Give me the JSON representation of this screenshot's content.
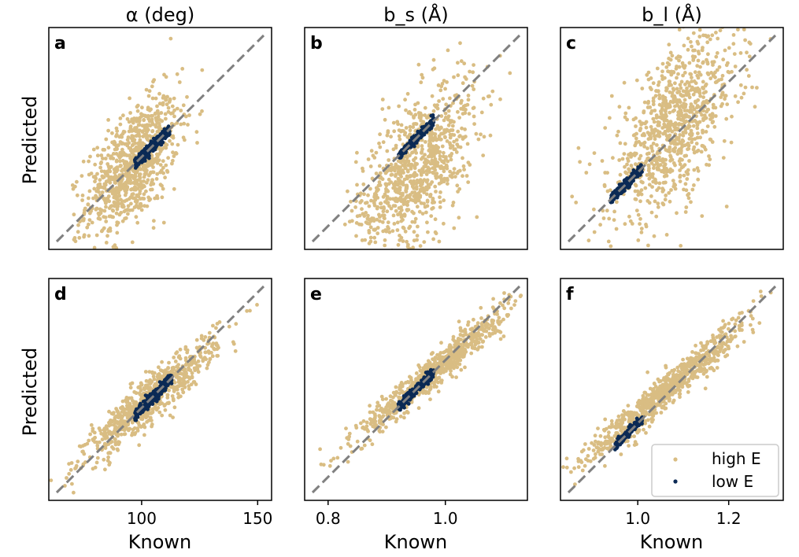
{
  "colors": {
    "high": "#d9bd83",
    "low": "#0b2a55",
    "identity": "#808080",
    "frame": "#000000"
  },
  "ylabel": "Predicted",
  "xlabel": "Known",
  "legend": {
    "items": [
      "high E",
      "low E"
    ],
    "position": "bottom-right of panel f"
  },
  "chart_data": [
    {
      "type": "scatter",
      "panel": "a",
      "title": "α (deg)",
      "xlim": [
        60,
        156
      ],
      "ylim": [
        60,
        156
      ],
      "xticks": [
        100,
        150
      ],
      "show_xticks": false,
      "high": {
        "center": [
          96,
          96
        ],
        "spread": [
          10,
          12
        ],
        "count": 900
      },
      "low": {
        "x_range": [
          97,
          112
        ],
        "slope": 1.0,
        "width": 1.2,
        "count": 320
      }
    },
    {
      "type": "scatter",
      "panel": "b",
      "title": "b_s (Å)",
      "xlim": [
        0.76,
        1.14
      ],
      "ylim": [
        0.76,
        1.14
      ],
      "xticks": [
        0.8,
        1.0
      ],
      "show_xticks": false,
      "high": {
        "center": [
          0.95,
          0.9
        ],
        "spread": [
          0.05,
          0.06
        ],
        "count": 900
      },
      "low": {
        "x_range": [
          0.92,
          0.98
        ],
        "slope": 1.0,
        "width": 0.004,
        "count": 260
      }
    },
    {
      "type": "scatter",
      "panel": "c",
      "title": "b_l (Å)",
      "xlim": [
        0.83,
        1.32
      ],
      "ylim": [
        0.83,
        1.32
      ],
      "xticks": [
        1.0,
        1.2
      ],
      "show_xticks": false,
      "high": {
        "center": [
          1.08,
          1.1
        ],
        "spread": [
          0.07,
          0.08
        ],
        "count": 900
      },
      "low": {
        "x_range": [
          0.94,
          1.01
        ],
        "slope": 1.0,
        "width": 0.005,
        "count": 260
      }
    },
    {
      "type": "scatter",
      "panel": "d",
      "title": "",
      "xlim": [
        60,
        156
      ],
      "ylim": [
        60,
        156
      ],
      "xticks": [
        100,
        150
      ],
      "show_xticks": true,
      "high": {
        "center": [
          104,
          104
        ],
        "spread": [
          14,
          5
        ],
        "count": 800
      },
      "low": {
        "x_range": [
          97,
          113
        ],
        "slope": 1.0,
        "width": 1.2,
        "count": 320
      }
    },
    {
      "type": "scatter",
      "panel": "e",
      "title": "",
      "xlim": [
        0.76,
        1.14
      ],
      "ylim": [
        0.76,
        1.14
      ],
      "xticks": [
        0.8,
        1.0
      ],
      "show_xticks": true,
      "high": {
        "center": [
          0.98,
          0.98
        ],
        "spread": [
          0.06,
          0.015
        ],
        "count": 800
      },
      "low": {
        "x_range": [
          0.92,
          0.98
        ],
        "slope": 1.0,
        "width": 0.004,
        "count": 260
      }
    },
    {
      "type": "scatter",
      "panel": "f",
      "title": "",
      "xlim": [
        0.83,
        1.32
      ],
      "ylim": [
        0.83,
        1.32
      ],
      "xticks": [
        1.0,
        1.2
      ],
      "show_xticks": true,
      "high": {
        "center": [
          1.06,
          1.07
        ],
        "spread": [
          0.09,
          0.02
        ],
        "count": 800
      },
      "low": {
        "x_range": [
          0.95,
          1.01
        ],
        "slope": 1.0,
        "width": 0.004,
        "count": 260
      }
    }
  ]
}
